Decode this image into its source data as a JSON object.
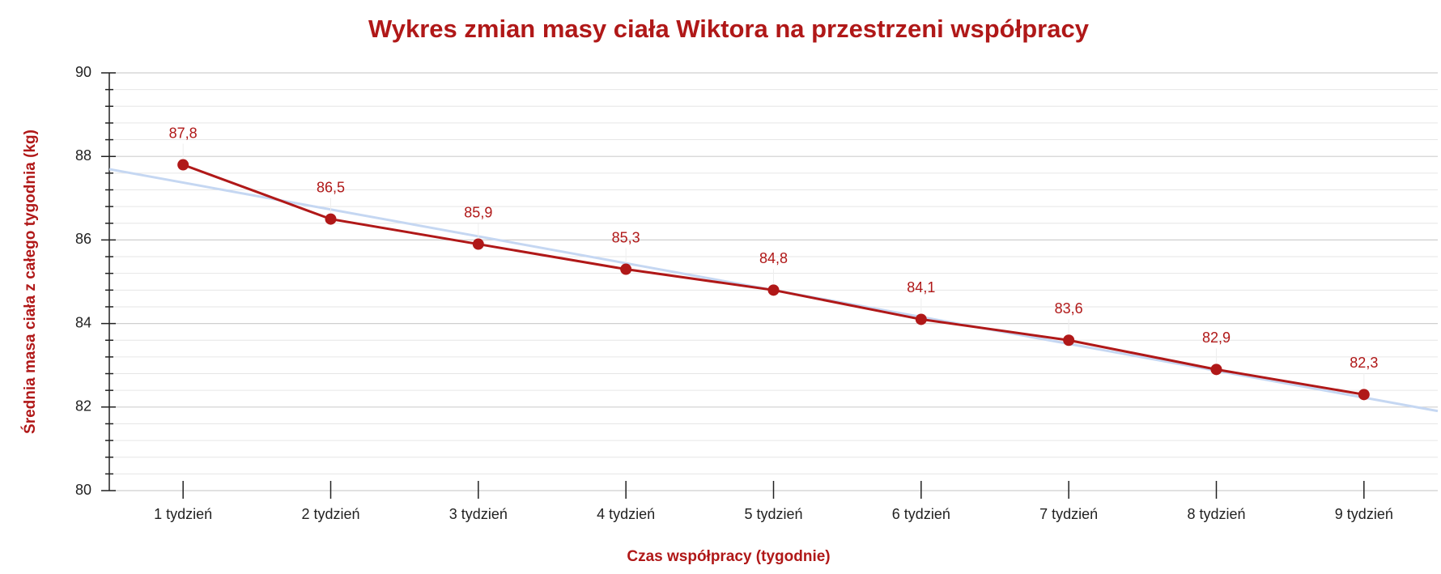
{
  "chart_data": {
    "type": "line",
    "title": "Wykres zmian masy ciała Wiktora na przestrzeni współpracy",
    "x_label": "Czas współpracy (tygodnie)",
    "y_label": "Średnia masa ciała z całego tygodnia (kg)",
    "categories": [
      "1 tydzień",
      "2 tydzień",
      "3 tydzień",
      "4 tydzień",
      "5 tydzień",
      "6 tydzień",
      "7 tydzień",
      "8 tydzień",
      "9 tydzień"
    ],
    "series": [
      {
        "color": "#b01818",
        "values": [
          87.8,
          86.5,
          85.9,
          85.3,
          84.8,
          84.1,
          83.6,
          82.9,
          82.3
        ],
        "value_labels": [
          "87,8",
          "86,5",
          "85,9",
          "85,3",
          "84,8",
          "84,1",
          "83,6",
          "82,9",
          "82,3"
        ]
      }
    ],
    "trendline": true,
    "trendline_color": "#c5d7f2",
    "ylim": [
      80,
      90
    ],
    "yticks": [
      80,
      82,
      84,
      86,
      88,
      90
    ],
    "yticks_minor": [
      80.4,
      80.8,
      81.2,
      81.6,
      82.4,
      82.8,
      83.2,
      83.6,
      84.4,
      84.8,
      85.2,
      85.6,
      86.4,
      86.8,
      87.2,
      87.6,
      88.4,
      88.8,
      89.2,
      89.6
    ],
    "grid": true
  }
}
